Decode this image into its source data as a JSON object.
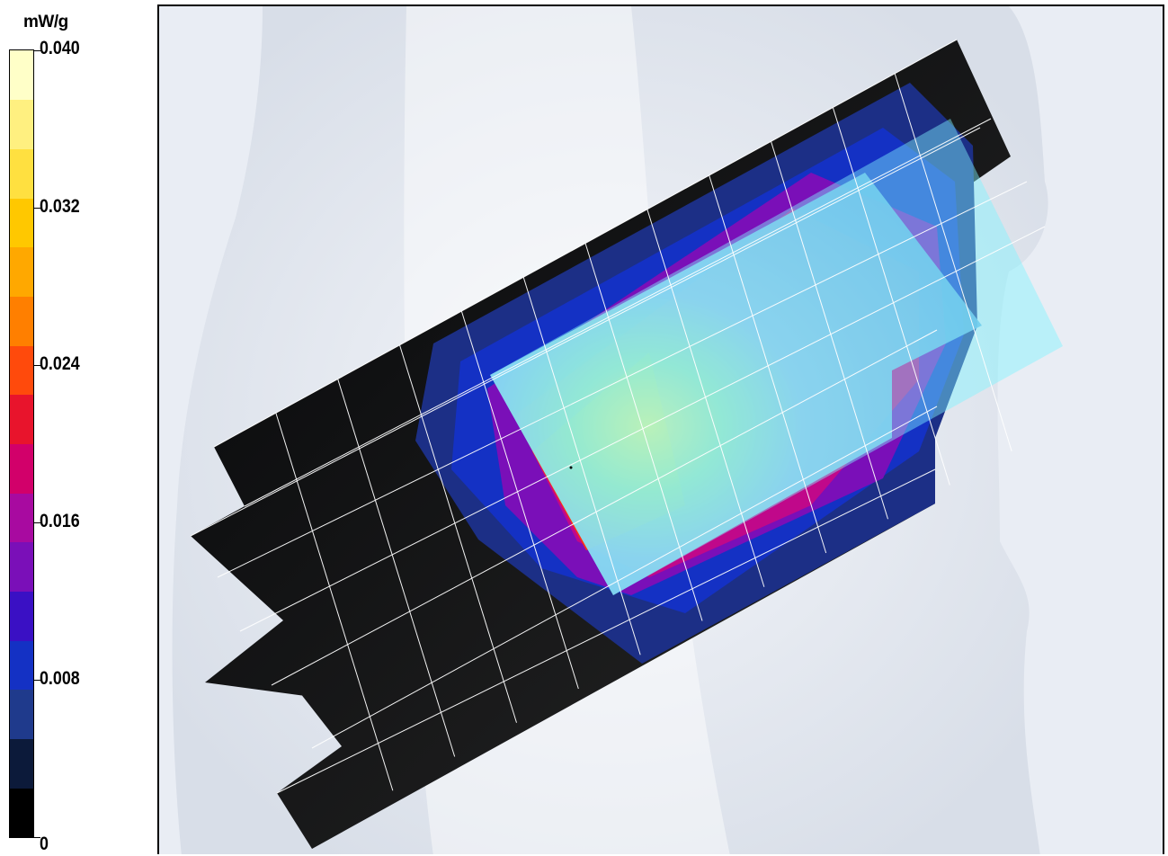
{
  "chart_data": {
    "type": "heatmap",
    "title": "",
    "xlabel": "",
    "ylabel": "",
    "colorbar": {
      "unit_label": "mW/g",
      "min": 0,
      "max": 0.04,
      "tick_labels": [
        "0.040",
        "0.032",
        "0.024",
        "0.016",
        "0.008",
        "0"
      ],
      "tick_values": [
        0.04,
        0.032,
        0.024,
        0.016,
        0.008,
        0
      ],
      "level_colors": [
        "#000000",
        "#0c1a3a",
        "#1f3a8c",
        "#1431c4",
        "#3a10c4",
        "#7a0fb8",
        "#a80aa0",
        "#d2006a",
        "#e8142c",
        "#ff4a0c",
        "#ff7f00",
        "#ffa800",
        "#ffc800",
        "#ffe040",
        "#fff080",
        "#ffffc8"
      ]
    }
  }
}
